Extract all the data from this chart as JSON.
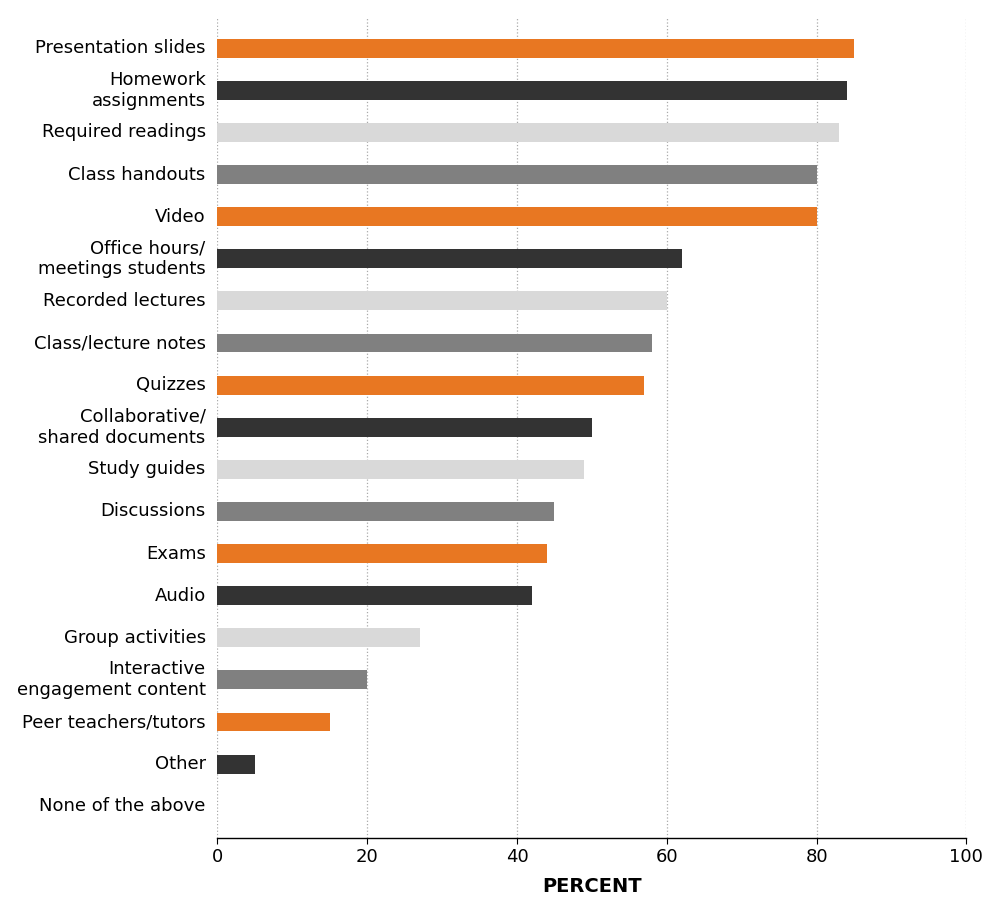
{
  "categories": [
    "Presentation slides",
    "Homework\nassignments",
    "Required readings",
    "Class handouts",
    "Video",
    "Office hours/\nmeetings students",
    "Recorded lectures",
    "Class/lecture notes",
    "Quizzes",
    "Collaborative/\nshared documents",
    "Study guides",
    "Discussions",
    "Exams",
    "Audio",
    "Group activities",
    "Interactive\nengagement content",
    "Peer teachers/tutors",
    "Other",
    "None of the above"
  ],
  "values": [
    85,
    84,
    83,
    80,
    80,
    62,
    60,
    58,
    57,
    50,
    49,
    45,
    44,
    42,
    27,
    20,
    15,
    5,
    0
  ],
  "colors": [
    "#e87722",
    "#333333",
    "#d9d9d9",
    "#808080",
    "#e87722",
    "#333333",
    "#d9d9d9",
    "#808080",
    "#e87722",
    "#333333",
    "#d9d9d9",
    "#808080",
    "#e87722",
    "#333333",
    "#d9d9d9",
    "#808080",
    "#e87722",
    "#333333",
    "#d9d9d9"
  ],
  "xlabel": "PERCENT",
  "xlim": [
    0,
    100
  ],
  "xticks": [
    0,
    20,
    40,
    60,
    80,
    100
  ],
  "grid_color": "#aaaaaa",
  "background_color": "#ffffff",
  "xlabel_fontsize": 14,
  "tick_fontsize": 13,
  "label_fontsize": 13
}
